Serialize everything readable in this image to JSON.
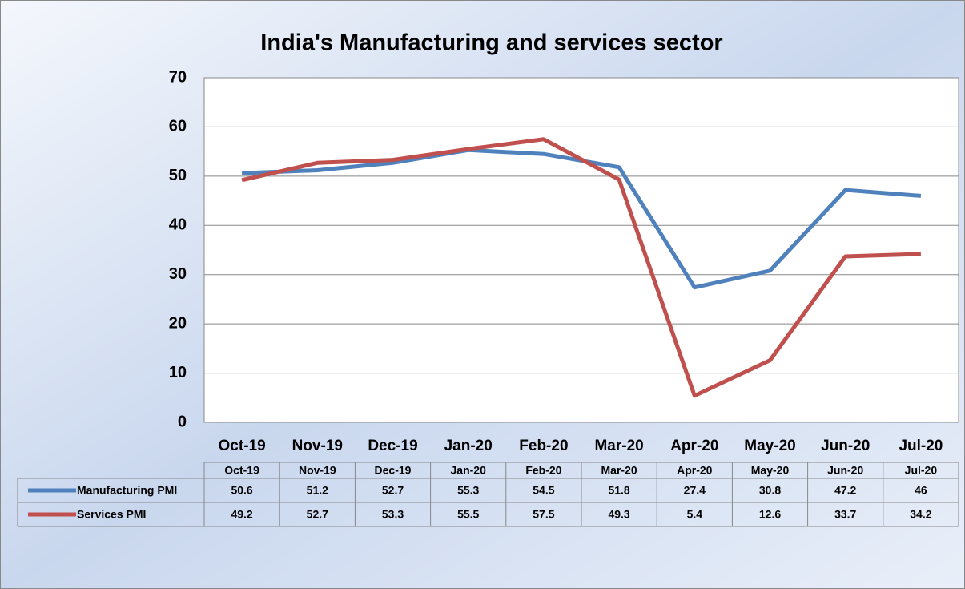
{
  "chart_data": {
    "type": "line",
    "title": "India's Manufacturing and services sector",
    "categories": [
      "Oct-19",
      "Nov-19",
      "Dec-19",
      "Jan-20",
      "Feb-20",
      "Mar-20",
      "Apr-20",
      "May-20",
      "Jun-20",
      "Jul-20"
    ],
    "series": [
      {
        "name": "Manufacturing PMI",
        "color": "#4f81bd",
        "values": [
          50.6,
          51.2,
          52.7,
          55.3,
          54.5,
          51.8,
          27.4,
          30.8,
          47.2,
          46
        ]
      },
      {
        "name": "Services PMI",
        "color": "#c0504d",
        "values": [
          49.2,
          52.7,
          53.3,
          55.5,
          57.5,
          49.3,
          5.4,
          12.6,
          33.7,
          34.2
        ]
      }
    ],
    "ylim": [
      0,
      70
    ],
    "yticks": [
      0,
      10,
      20,
      30,
      40,
      50,
      60,
      70
    ],
    "grid": true
  }
}
